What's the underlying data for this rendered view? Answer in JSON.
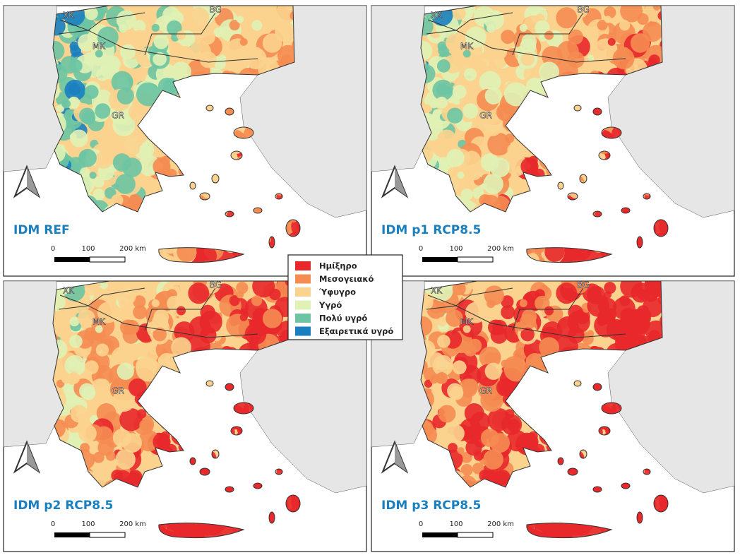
{
  "panels": [
    {
      "title": "IDM REF"
    },
    {
      "title": "IDM p1 RCP8.5"
    },
    {
      "title": "IDM p2 RCP8.5"
    },
    {
      "title": "IDM p3 RCP8.5"
    }
  ],
  "countries": [
    "XK",
    "MK",
    "BG",
    "GR"
  ],
  "scale": [
    "0",
    "100",
    "200 km"
  ],
  "legend": [
    {
      "label": "Ημίξηρο",
      "color": "#e8282b"
    },
    {
      "label": "Μεσογειακό",
      "color": "#f58c52"
    },
    {
      "label": "Ύφυγρο",
      "color": "#fbd38e"
    },
    {
      "label": "Υγρό",
      "color": "#e0f1b5"
    },
    {
      "label": "Πολύ υγρό",
      "color": "#6cc4a3"
    },
    {
      "label": "Εξαιρετικά υγρό",
      "color": "#1a7fbf"
    }
  ]
}
